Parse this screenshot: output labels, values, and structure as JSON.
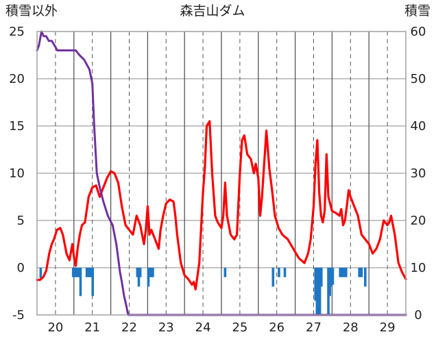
{
  "chart_data": {
    "type": "line",
    "title": "森吉山ダム",
    "left_axis_label": "積雪以外",
    "right_axis_label": "積雪",
    "x_range": [
      19.5,
      29.5
    ],
    "x_ticks": [
      20,
      21,
      22,
      23,
      24,
      25,
      26,
      27,
      28,
      29
    ],
    "ylim_left": [
      -5,
      25
    ],
    "ylim_right": [
      0,
      60
    ],
    "y_ticks_left": [
      25,
      20,
      15,
      10,
      5,
      0,
      -5
    ],
    "y_ticks_right": [
      60,
      50,
      40,
      30,
      20,
      10,
      0
    ],
    "grid": "dashed-vertical-at-day-ticks",
    "colors": {
      "temperature": "#ff0000",
      "snow_depth": "#7030a0",
      "precipitation": "#1f77c4"
    },
    "series": [
      {
        "axis": "left",
        "kind": "line",
        "color": "#ff0000",
        "x": [
          19.5,
          19.58,
          19.67,
          19.75,
          19.83,
          19.9,
          19.96,
          20.04,
          20.13,
          20.2,
          20.3,
          20.38,
          20.46,
          20.5,
          20.55,
          20.6,
          20.66,
          20.72,
          20.8,
          20.9,
          21.0,
          21.1,
          21.2,
          21.3,
          21.4,
          21.5,
          21.6,
          21.7,
          21.8,
          21.9,
          22.0,
          22.1,
          22.2,
          22.3,
          22.4,
          22.45,
          22.5,
          22.55,
          22.6,
          22.7,
          22.8,
          22.85,
          22.92,
          23.0,
          23.1,
          23.2,
          23.25,
          23.3,
          23.4,
          23.5,
          23.6,
          23.7,
          23.75,
          23.8,
          23.9,
          24.0,
          24.05,
          24.1,
          24.18,
          24.25,
          24.33,
          24.4,
          24.5,
          24.55,
          24.6,
          24.65,
          24.75,
          24.85,
          24.92,
          25.0,
          25.06,
          25.12,
          25.2,
          25.3,
          25.38,
          25.43,
          25.5,
          25.55,
          25.6,
          25.65,
          25.72,
          25.8,
          25.88,
          25.95,
          26.05,
          26.15,
          26.3,
          26.45,
          26.6,
          26.75,
          26.85,
          26.92,
          27.0,
          27.05,
          27.1,
          27.15,
          27.2,
          27.25,
          27.3,
          27.35,
          27.4,
          27.5,
          27.6,
          27.7,
          27.75,
          27.8,
          27.85,
          27.9,
          27.95,
          28.0,
          28.1,
          28.2,
          28.3,
          28.4,
          28.5,
          28.6,
          28.7,
          28.8,
          28.9,
          29.0,
          29.05,
          29.1,
          29.15,
          29.2,
          29.3,
          29.4,
          29.5
        ],
        "values": [
          -1.3,
          -1.3,
          -1.0,
          -0.3,
          1.5,
          2.5,
          3.0,
          4.0,
          4.2,
          3.5,
          1.5,
          0.8,
          2.5,
          1.2,
          0.2,
          2.0,
          3.5,
          4.5,
          4.8,
          7.5,
          8.5,
          8.7,
          7.5,
          8.5,
          9.5,
          10.2,
          10.0,
          9.0,
          6.5,
          4.5,
          4.0,
          3.5,
          5.5,
          4.5,
          2.5,
          4.0,
          6.5,
          3.5,
          4.0,
          3.0,
          2.0,
          4.0,
          5.5,
          6.8,
          7.2,
          7.0,
          5.5,
          3.5,
          0.5,
          -0.8,
          -1.2,
          -1.8,
          -1.5,
          -2.3,
          0.5,
          8.0,
          10.5,
          15.0,
          15.5,
          10.0,
          5.5,
          4.8,
          4.2,
          5.5,
          9.0,
          5.5,
          3.5,
          3.0,
          3.5,
          10.0,
          13.5,
          14.0,
          12.0,
          11.5,
          10.0,
          11.0,
          9.5,
          5.5,
          7.5,
          10.5,
          14.5,
          10.5,
          8.0,
          5.5,
          4.2,
          3.5,
          3.0,
          2.0,
          1.0,
          0.5,
          1.5,
          3.0,
          6.5,
          11.0,
          13.5,
          8.0,
          5.5,
          4.8,
          6.0,
          12.0,
          7.5,
          6.0,
          5.8,
          5.5,
          6.2,
          4.5,
          5.0,
          6.5,
          8.2,
          7.5,
          6.5,
          5.5,
          3.5,
          3.0,
          2.5,
          1.5,
          2.0,
          3.0,
          5.0,
          4.5,
          4.8,
          5.5,
          4.5,
          3.5,
          0.5,
          -0.5,
          -1.2
        ]
      },
      {
        "axis": "right",
        "kind": "line",
        "color": "#7030a0",
        "x": [
          19.5,
          19.55,
          19.62,
          19.68,
          19.75,
          19.82,
          19.9,
          19.98,
          20.05,
          20.2,
          20.4,
          20.55,
          20.65,
          20.78,
          20.85,
          20.92,
          21.0,
          21.05,
          21.12,
          21.2,
          21.3,
          21.42,
          21.55,
          21.65,
          21.75,
          21.8,
          21.86,
          21.92,
          21.97,
          22.05,
          22.5,
          23.0,
          24.0,
          25.0,
          26.0,
          27.0,
          28.0,
          29.0,
          29.5
        ],
        "values": [
          56,
          57,
          60,
          59,
          59,
          58,
          58,
          57,
          56,
          56,
          56,
          56,
          55,
          54,
          53,
          52,
          49,
          40,
          30,
          27,
          24,
          21,
          19,
          15,
          9,
          7,
          4,
          2,
          0,
          0,
          0,
          0,
          0,
          0,
          0,
          0,
          0,
          0,
          0
        ]
      },
      {
        "axis": "left",
        "kind": "bar",
        "color": "#1f77c4",
        "x": [
          19.6,
          20.48,
          20.52,
          20.56,
          20.6,
          20.64,
          20.68,
          20.85,
          20.89,
          20.93,
          20.97,
          21.01,
          22.22,
          22.26,
          22.3,
          22.52,
          22.56,
          22.6,
          22.64,
          24.6,
          25.9,
          26.06,
          26.22,
          27.05,
          27.09,
          27.13,
          27.17,
          27.21,
          27.4,
          27.44,
          27.48,
          27.52,
          27.72,
          27.76,
          27.82,
          27.88,
          28.24,
          28.3,
          28.4
        ],
        "values": [
          -1.1,
          -1.0,
          -1.0,
          -1.0,
          -1.0,
          -1.0,
          -3.0,
          -1.0,
          -1.0,
          -1.0,
          -1.0,
          -3.0,
          -1.0,
          -2.0,
          -1.0,
          -2.0,
          -1.0,
          -1.0,
          -1.0,
          -1.0,
          -2.0,
          -1.0,
          -1.0,
          -3.5,
          -5.0,
          -5.0,
          -5.0,
          -2.0,
          -5.0,
          -3.0,
          -2.0,
          -1.8,
          -1.0,
          -1.0,
          -1.0,
          -1.0,
          -1.0,
          -1.0,
          -2.0
        ]
      }
    ]
  }
}
